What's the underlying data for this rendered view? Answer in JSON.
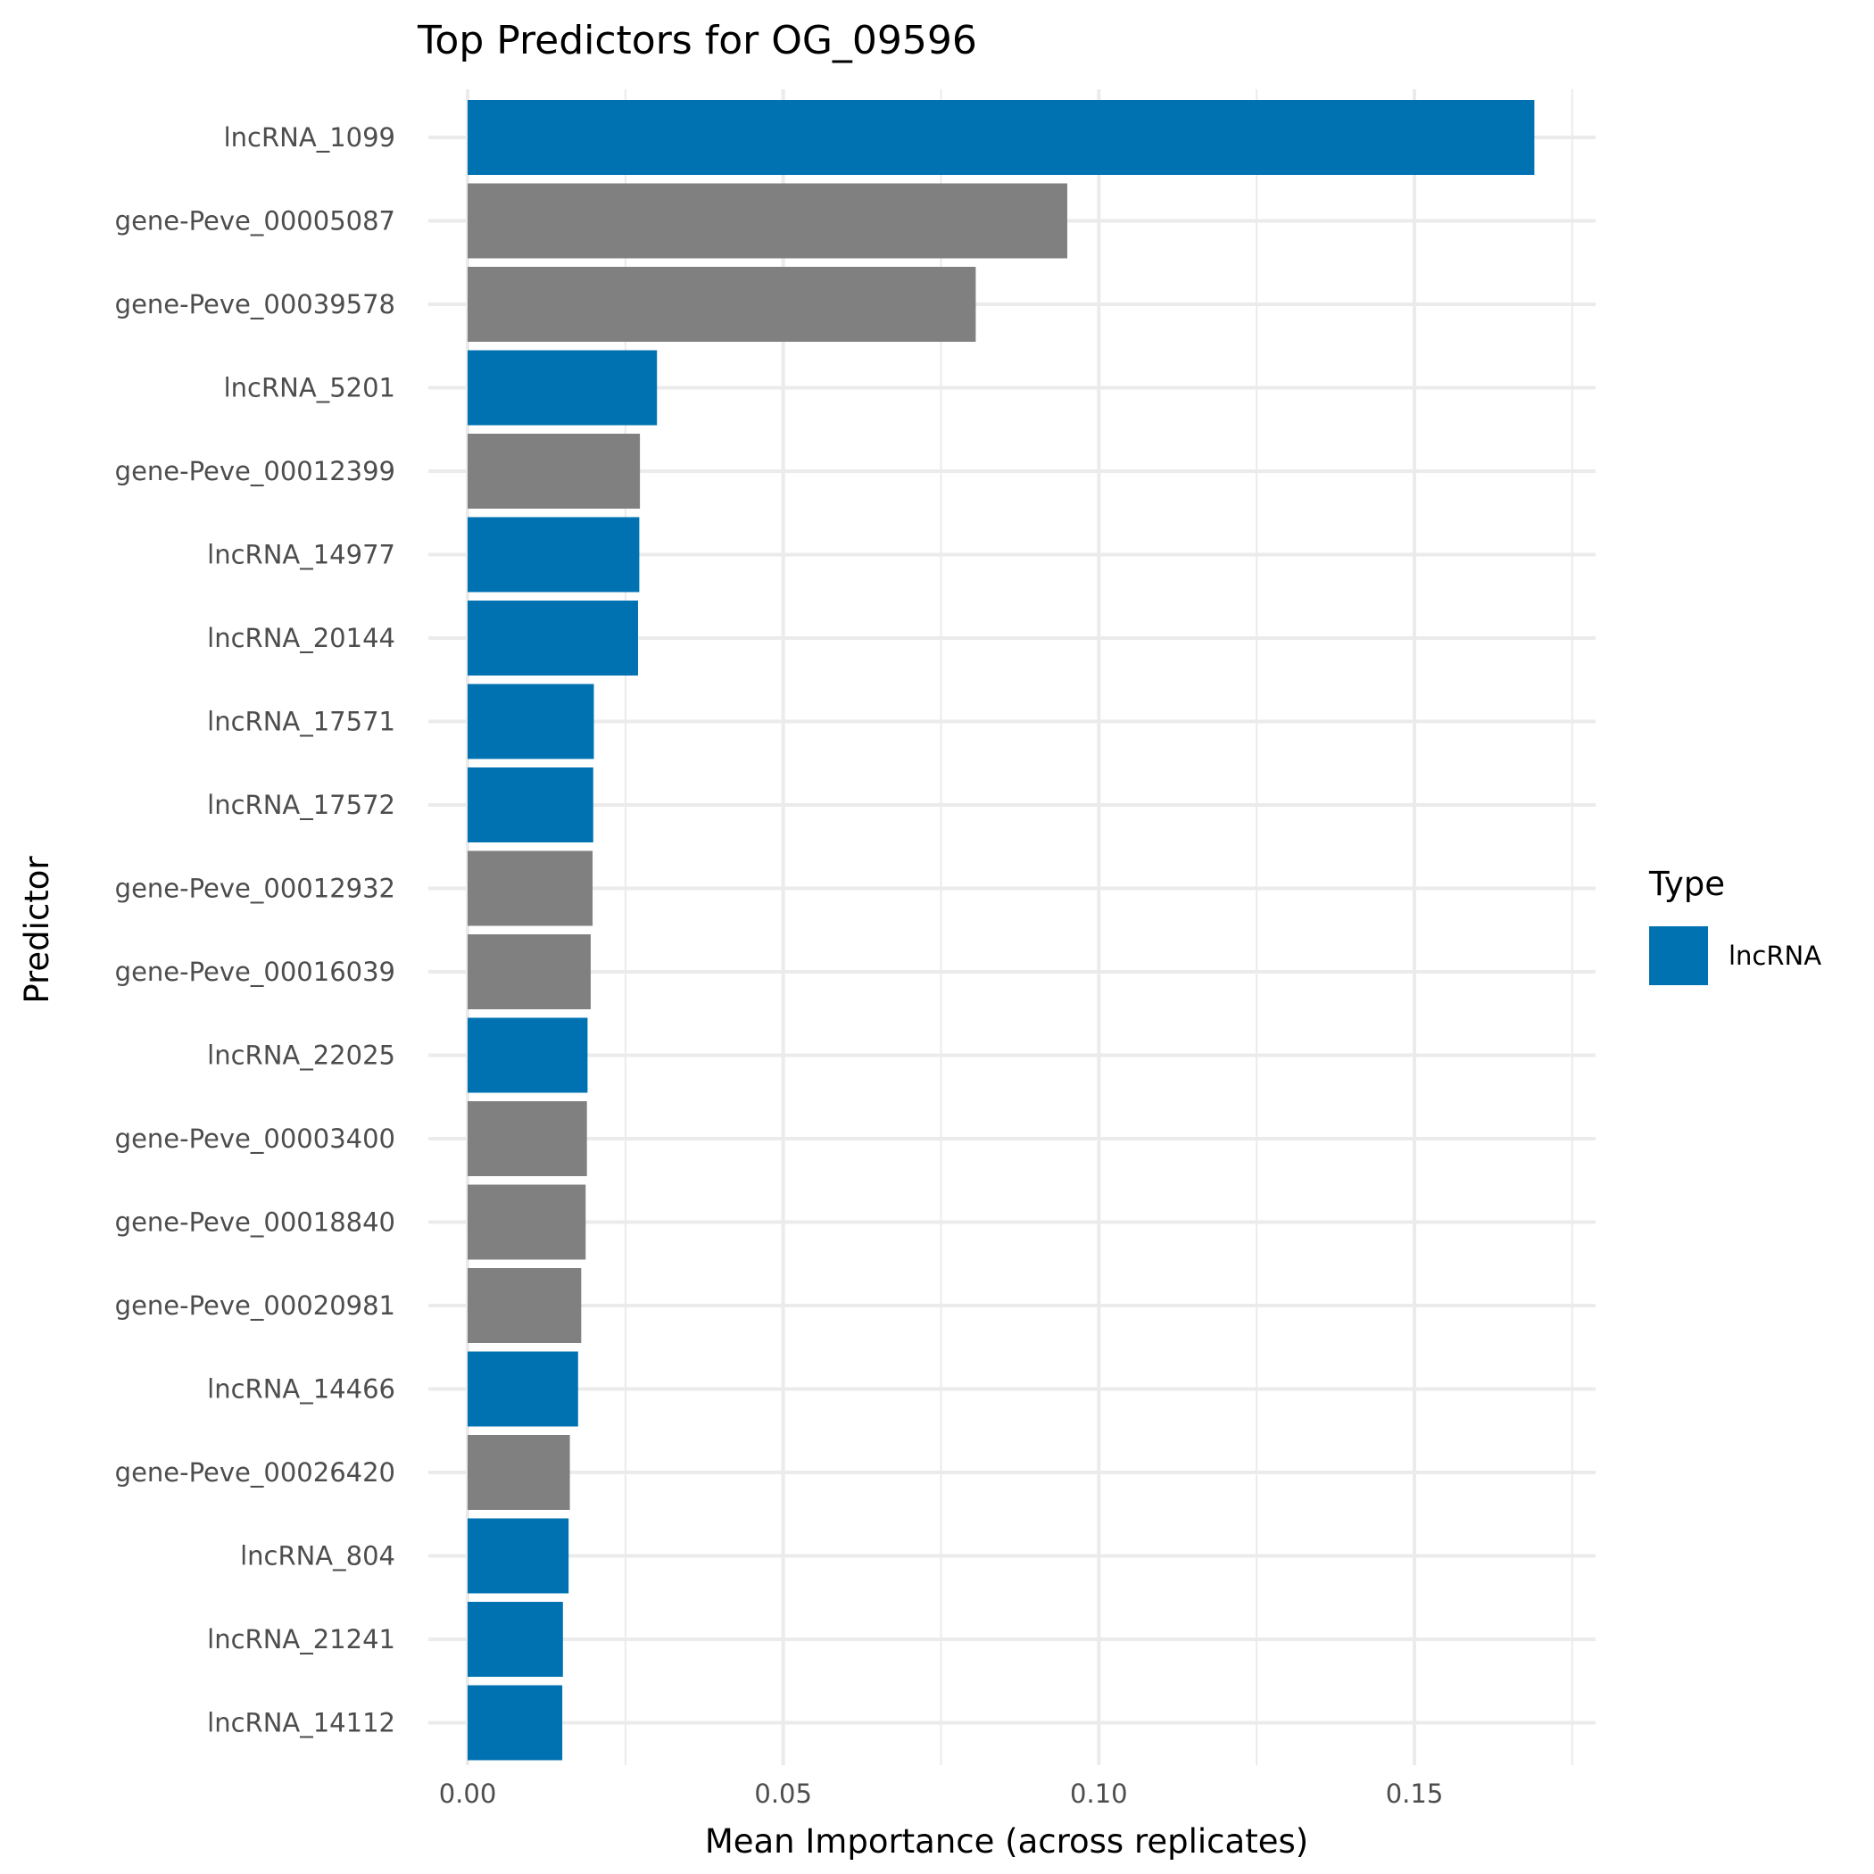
{
  "chart_data": {
    "type": "bar",
    "orientation": "horizontal",
    "title": "Top Predictors for OG_09596",
    "xlabel": "Mean Importance (across replicates)",
    "ylabel": "Predictor",
    "xlim": [
      0,
      0.175
    ],
    "x_ticks": [
      0.0,
      0.05,
      0.1,
      0.15
    ],
    "x_tick_labels": [
      "0.00",
      "0.05",
      "0.10",
      "0.15"
    ],
    "grid": true,
    "legend": {
      "title": "Type",
      "placement": "right",
      "entries": [
        {
          "label": "lncRNA",
          "color": "#0072B2"
        }
      ]
    },
    "colors": {
      "lncRNA": "#0072B2",
      "gene": "#808080"
    },
    "categories": [
      "lncRNA_1099",
      "gene-Peve_00005087",
      "gene-Peve_00039578",
      "lncRNA_5201",
      "gene-Peve_00012399",
      "lncRNA_14977",
      "lncRNA_20144",
      "lncRNA_17571",
      "lncRNA_17572",
      "gene-Peve_00012932",
      "gene-Peve_00016039",
      "lncRNA_22025",
      "gene-Peve_00003400",
      "gene-Peve_00018840",
      "gene-Peve_00020981",
      "lncRNA_14466",
      "gene-Peve_00026420",
      "lncRNA_804",
      "lncRNA_21241",
      "lncRNA_14112"
    ],
    "types": [
      "lncRNA",
      "gene",
      "gene",
      "lncRNA",
      "gene",
      "lncRNA",
      "lncRNA",
      "lncRNA",
      "lncRNA",
      "gene",
      "gene",
      "lncRNA",
      "gene",
      "gene",
      "gene",
      "lncRNA",
      "gene",
      "lncRNA",
      "lncRNA",
      "lncRNA"
    ],
    "values": [
      0.169,
      0.095,
      0.0805,
      0.03,
      0.0273,
      0.0272,
      0.027,
      0.02,
      0.0199,
      0.0198,
      0.0195,
      0.019,
      0.0189,
      0.0187,
      0.018,
      0.0175,
      0.0162,
      0.016,
      0.0151,
      0.015
    ]
  }
}
